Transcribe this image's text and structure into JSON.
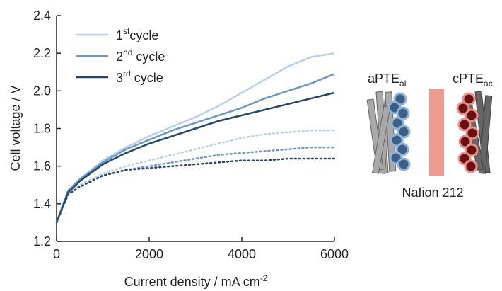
{
  "chart_data": {
    "type": "line",
    "xlabel": [
      "Current density / mA cm",
      "-2"
    ],
    "ylabel": "Cell voltage / V",
    "x": [
      0,
      250,
      500,
      1000,
      1500,
      2000,
      2500,
      3000,
      3500,
      4000,
      4500,
      5000,
      5500,
      6000
    ],
    "series": [
      {
        "name": [
          "1",
          "st",
          "cycle"
        ],
        "color": "#b9d0e6",
        "dash": "solid",
        "values": [
          1.3,
          1.47,
          1.53,
          1.63,
          1.7,
          1.76,
          1.81,
          1.86,
          1.92,
          1.99,
          2.06,
          2.13,
          2.18,
          2.2
        ]
      },
      {
        "name": [
          "2",
          "nd",
          " cycle"
        ],
        "color": "#6b97c6",
        "dash": "solid",
        "values": [
          1.3,
          1.47,
          1.53,
          1.62,
          1.69,
          1.74,
          1.79,
          1.83,
          1.87,
          1.91,
          1.96,
          2.0,
          2.04,
          2.09
        ]
      },
      {
        "name": [
          "3",
          "rd",
          " cycle"
        ],
        "color": "#26456a",
        "dash": "solid",
        "values": [
          1.3,
          1.46,
          1.52,
          1.61,
          1.67,
          1.72,
          1.76,
          1.8,
          1.84,
          1.87,
          1.9,
          1.93,
          1.96,
          1.99
        ]
      },
      {
        "color": "#b9d0e6",
        "dash": "dotted",
        "values": [
          1.3,
          1.45,
          1.5,
          1.56,
          1.6,
          1.63,
          1.66,
          1.69,
          1.72,
          1.75,
          1.77,
          1.78,
          1.79,
          1.79
        ]
      },
      {
        "color": "#6b97c6",
        "dash": "dotted",
        "values": [
          1.3,
          1.45,
          1.49,
          1.55,
          1.58,
          1.6,
          1.62,
          1.64,
          1.66,
          1.67,
          1.68,
          1.69,
          1.7,
          1.7
        ]
      },
      {
        "color": "#26456a",
        "dash": "dotted",
        "values": [
          1.3,
          1.45,
          1.49,
          1.55,
          1.58,
          1.59,
          1.6,
          1.61,
          1.62,
          1.63,
          1.63,
          1.64,
          1.64,
          1.64
        ]
      }
    ],
    "xlim": [
      0,
      6000
    ],
    "xticks": [
      0,
      2000,
      4000,
      6000
    ],
    "ylim": [
      1.2,
      2.4
    ],
    "yticks": [
      1.2,
      1.4,
      1.6,
      1.8,
      {
        "value": 2,
        "label": "2.0"
      },
      2.2,
      2.4
    ],
    "grid": false,
    "annotations": {
      "anode": [
        "aPTE",
        "al"
      ],
      "cathode": [
        "cPTE",
        "ac"
      ],
      "membrane": "Nafion 212"
    }
  }
}
